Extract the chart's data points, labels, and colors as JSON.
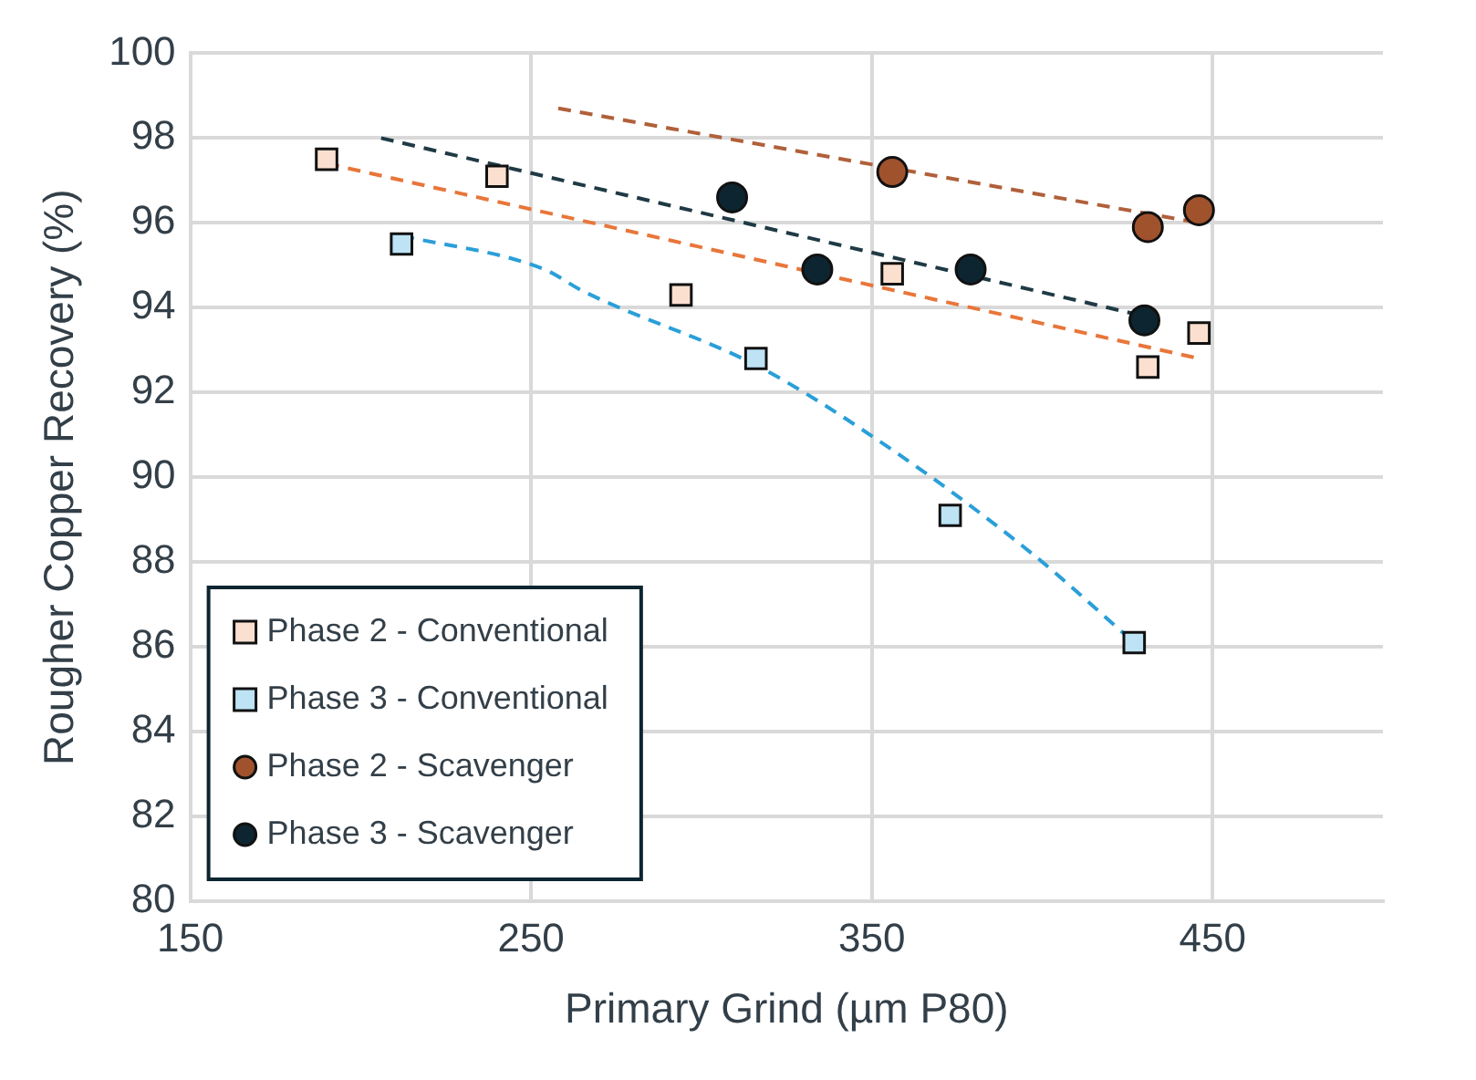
{
  "chart_data": {
    "type": "scatter",
    "xlabel": "Primary Grind (µm P80)",
    "ylabel": "Rougher Copper Recovery (%)",
    "xlim": [
      150,
      500
    ],
    "xticks": [
      150,
      250,
      350,
      450
    ],
    "ylim": [
      80,
      100
    ],
    "yticks": [
      80,
      82,
      84,
      86,
      88,
      90,
      92,
      94,
      96,
      98,
      100
    ],
    "grid": true,
    "legend": "bottom left",
    "series": [
      {
        "name": "Phase 2 - Conventional",
        "color": "#fbe0d0",
        "marker": "square",
        "x": [
          190,
          240,
          294,
          356,
          431,
          446
        ],
        "values": [
          97.5,
          97.1,
          94.3,
          94.8,
          92.6,
          93.4
        ]
      },
      {
        "name": "Phase 3 - Conventional",
        "color": "#bde3f5",
        "marker": "square",
        "x": [
          212,
          316,
          373,
          427
        ],
        "values": [
          95.5,
          92.8,
          89.1,
          86.1
        ]
      },
      {
        "name": "Phase 2 - Scavenger",
        "color": "#a0522d",
        "marker": "circle",
        "x": [
          356,
          431,
          446
        ],
        "values": [
          97.2,
          95.9,
          96.3
        ]
      },
      {
        "name": "Phase 3 - Scavenger",
        "color": "#0d2530",
        "marker": "circle",
        "x": [
          309,
          334,
          379,
          430
        ],
        "values": [
          96.6,
          94.9,
          94.9,
          93.7
        ]
      },
      {
        "type": "line",
        "color": "#e8763a",
        "line_style": "dashed",
        "marker": "none",
        "x": [
          190,
          446
        ],
        "values": [
          97.4,
          92.8
        ]
      },
      {
        "type": "line",
        "color": "#2a9fd8",
        "line_style": "dashed",
        "marker": "none",
        "x": [
          212,
          254,
          265,
          317,
          355,
          397,
          427
        ],
        "values": [
          95.7,
          94.9,
          94.4,
          92.6,
          90.7,
          88.2,
          86.1
        ]
      },
      {
        "type": "line",
        "color": "#b0603a",
        "line_style": "dashed",
        "marker": "none",
        "x": [
          258,
          446
        ],
        "values": [
          98.7,
          96.0
        ]
      },
      {
        "type": "line",
        "color": "#1f3a45",
        "line_style": "dashed",
        "marker": "none",
        "x": [
          206,
          430
        ],
        "values": [
          98.0,
          93.8
        ]
      }
    ]
  }
}
